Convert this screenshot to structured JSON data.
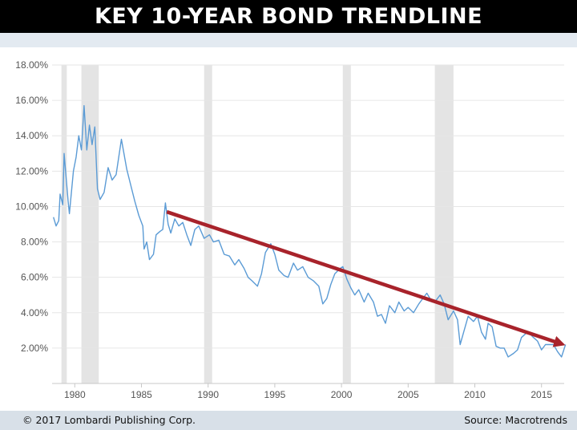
{
  "header": {
    "title": "KEY 10-YEAR BOND TRENDLINE"
  },
  "footer": {
    "copyright": "© 2017 Lombardi Publishing Corp.",
    "source": "Source: Macrotrends"
  },
  "colors": {
    "series": "#5b9bd5",
    "trendline": "#a8232b",
    "recession": "#e4e4e4",
    "grid": "#e6e6e6"
  },
  "chart_data": {
    "type": "line",
    "title": "KEY 10-YEAR BOND TRENDLINE",
    "xlabel": "",
    "ylabel": "",
    "xlim": [
      1978.3,
      2016.7
    ],
    "ylim": [
      0,
      18
    ],
    "grid": true,
    "y_ticks": [
      "2.00%",
      "4.00%",
      "6.00%",
      "8.00%",
      "10.00%",
      "12.00%",
      "14.00%",
      "16.00%",
      "18.00%"
    ],
    "x_ticks": [
      "1980",
      "1985",
      "1990",
      "1995",
      "2000",
      "2005",
      "2010",
      "2015"
    ],
    "recessions": [
      [
        1979.0,
        1979.4
      ],
      [
        1980.5,
        1981.8
      ],
      [
        1989.7,
        1990.3
      ],
      [
        2000.1,
        2000.7
      ],
      [
        2007.0,
        2008.4
      ]
    ],
    "series": [
      {
        "values": [
          [
            1978.4,
            9.4
          ],
          [
            1978.6,
            8.9
          ],
          [
            1978.8,
            9.2
          ],
          [
            1978.9,
            10.7
          ],
          [
            1979.1,
            10.1
          ],
          [
            1979.2,
            13.0
          ],
          [
            1979.5,
            10.3
          ],
          [
            1979.6,
            9.6
          ],
          [
            1979.9,
            12.0
          ],
          [
            1980.1,
            12.8
          ],
          [
            1980.3,
            14.0
          ],
          [
            1980.5,
            13.2
          ],
          [
            1980.7,
            15.7
          ],
          [
            1980.9,
            13.2
          ],
          [
            1981.1,
            14.6
          ],
          [
            1981.3,
            13.5
          ],
          [
            1981.5,
            14.5
          ],
          [
            1981.7,
            11.0
          ],
          [
            1981.9,
            10.4
          ],
          [
            1982.2,
            10.8
          ],
          [
            1982.5,
            12.2
          ],
          [
            1982.8,
            11.5
          ],
          [
            1983.1,
            11.8
          ],
          [
            1983.5,
            13.8
          ],
          [
            1983.9,
            12.1
          ],
          [
            1984.2,
            11.2
          ],
          [
            1984.5,
            10.3
          ],
          [
            1984.8,
            9.5
          ],
          [
            1985.1,
            8.9
          ],
          [
            1985.2,
            7.6
          ],
          [
            1985.4,
            8.0
          ],
          [
            1985.6,
            7.0
          ],
          [
            1985.9,
            7.3
          ],
          [
            1986.1,
            8.4
          ],
          [
            1986.4,
            8.6
          ],
          [
            1986.6,
            8.7
          ],
          [
            1986.8,
            10.2
          ],
          [
            1987.0,
            9.0
          ],
          [
            1987.2,
            8.5
          ],
          [
            1987.5,
            9.3
          ],
          [
            1987.8,
            8.9
          ],
          [
            1988.1,
            9.1
          ],
          [
            1988.4,
            8.4
          ],
          [
            1988.7,
            7.8
          ],
          [
            1989.0,
            8.7
          ],
          [
            1989.3,
            8.9
          ],
          [
            1989.7,
            8.2
          ],
          [
            1990.1,
            8.4
          ],
          [
            1990.4,
            8.0
          ],
          [
            1990.8,
            8.1
          ],
          [
            1991.2,
            7.3
          ],
          [
            1991.6,
            7.2
          ],
          [
            1992.0,
            6.7
          ],
          [
            1992.3,
            7.0
          ],
          [
            1992.7,
            6.5
          ],
          [
            1993.0,
            6.0
          ],
          [
            1993.3,
            5.8
          ],
          [
            1993.7,
            5.5
          ],
          [
            1994.0,
            6.2
          ],
          [
            1994.3,
            7.4
          ],
          [
            1994.7,
            7.9
          ],
          [
            1995.0,
            7.3
          ],
          [
            1995.3,
            6.4
          ],
          [
            1995.7,
            6.1
          ],
          [
            1996.0,
            6.0
          ],
          [
            1996.4,
            6.8
          ],
          [
            1996.7,
            6.4
          ],
          [
            1997.1,
            6.6
          ],
          [
            1997.5,
            6.0
          ],
          [
            1997.9,
            5.8
          ],
          [
            1998.3,
            5.5
          ],
          [
            1998.6,
            4.5
          ],
          [
            1998.9,
            4.8
          ],
          [
            1999.2,
            5.6
          ],
          [
            1999.5,
            6.2
          ],
          [
            1999.9,
            6.5
          ],
          [
            2000.1,
            6.6
          ],
          [
            2000.4,
            5.9
          ],
          [
            2000.7,
            5.4
          ],
          [
            2001.0,
            5.0
          ],
          [
            2001.3,
            5.3
          ],
          [
            2001.7,
            4.6
          ],
          [
            2002.0,
            5.1
          ],
          [
            2002.4,
            4.6
          ],
          [
            2002.7,
            3.8
          ],
          [
            2003.0,
            3.9
          ],
          [
            2003.3,
            3.4
          ],
          [
            2003.6,
            4.4
          ],
          [
            2004.0,
            4.0
          ],
          [
            2004.3,
            4.6
          ],
          [
            2004.7,
            4.1
          ],
          [
            2005.0,
            4.3
          ],
          [
            2005.4,
            4.0
          ],
          [
            2005.8,
            4.5
          ],
          [
            2006.1,
            4.8
          ],
          [
            2006.4,
            5.1
          ],
          [
            2006.8,
            4.6
          ],
          [
            2007.1,
            4.7
          ],
          [
            2007.4,
            5.0
          ],
          [
            2007.7,
            4.5
          ],
          [
            2008.0,
            3.6
          ],
          [
            2008.4,
            4.1
          ],
          [
            2008.7,
            3.6
          ],
          [
            2008.9,
            2.2
          ],
          [
            2009.2,
            3.0
          ],
          [
            2009.5,
            3.8
          ],
          [
            2009.9,
            3.5
          ],
          [
            2010.2,
            3.8
          ],
          [
            2010.5,
            2.9
          ],
          [
            2010.8,
            2.5
          ],
          [
            2011.0,
            3.4
          ],
          [
            2011.3,
            3.2
          ],
          [
            2011.6,
            2.1
          ],
          [
            2011.9,
            2.0
          ],
          [
            2012.2,
            2.0
          ],
          [
            2012.5,
            1.5
          ],
          [
            2012.9,
            1.7
          ],
          [
            2013.2,
            1.9
          ],
          [
            2013.5,
            2.6
          ],
          [
            2013.8,
            2.8
          ],
          [
            2014.0,
            2.9
          ],
          [
            2014.4,
            2.6
          ],
          [
            2014.7,
            2.4
          ],
          [
            2015.0,
            1.9
          ],
          [
            2015.3,
            2.2
          ],
          [
            2015.6,
            2.2
          ],
          [
            2015.9,
            2.2
          ],
          [
            2016.2,
            1.8
          ],
          [
            2016.5,
            1.5
          ],
          [
            2016.8,
            2.2
          ]
        ]
      }
    ],
    "trendline": {
      "from": [
        1986.9,
        9.7
      ],
      "to": [
        2016.7,
        2.2
      ]
    }
  }
}
